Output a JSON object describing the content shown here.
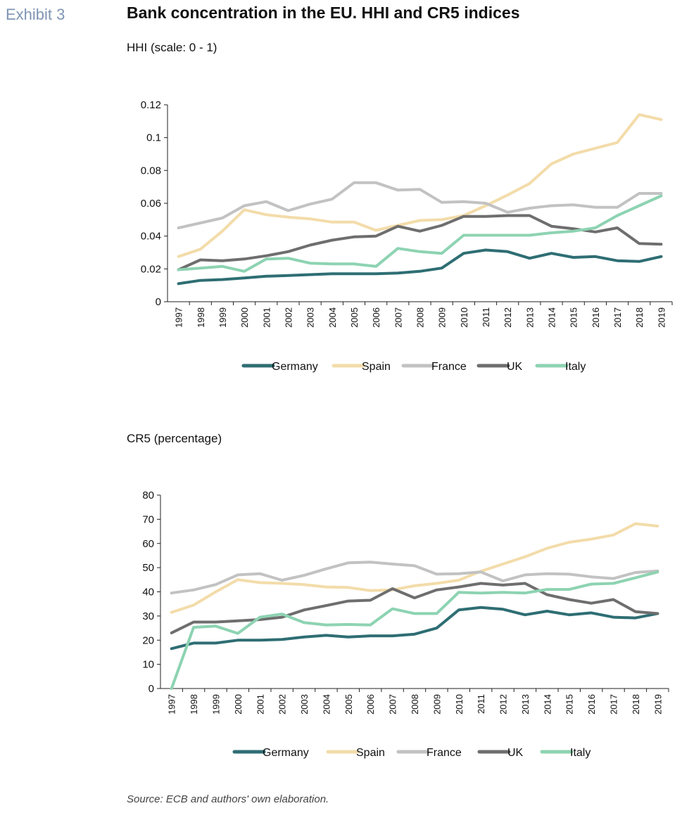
{
  "header": {
    "exhibit": "Exhibit 3",
    "title": "Bank concentration in the EU. HHI and CR5 indices"
  },
  "source": "Source: ECB and authors' own elaboration.",
  "colors": {
    "Germany": "#2e6e73",
    "Spain": "#f3dcaa",
    "France": "#c2c2c2",
    "UK": "#6e6e6e",
    "Italy": "#8dd3b2"
  },
  "chart_data": [
    {
      "type": "line",
      "title": "HHI (scale: 0 - 1)",
      "x": [
        "1997",
        "1998",
        "1999",
        "2000",
        "2001",
        "2002",
        "2003",
        "2004",
        "2005",
        "2006",
        "2007",
        "2008",
        "2009",
        "2010",
        "2011",
        "2012",
        "2013",
        "2014",
        "2015",
        "2016",
        "2017",
        "2018",
        "2019"
      ],
      "y_ticks": [
        "0",
        "0.02",
        "0.04",
        "0.06",
        "0.08",
        "0.1",
        "0.12"
      ],
      "ylim": [
        0,
        0.12
      ],
      "grid": false,
      "legend_position": "bottom",
      "series": [
        {
          "name": "Germany",
          "values": [
            0.011,
            0.013,
            0.0135,
            0.0145,
            0.0155,
            0.016,
            0.0165,
            0.017,
            0.017,
            0.017,
            0.0175,
            0.0185,
            0.0205,
            0.0295,
            0.0315,
            0.0305,
            0.0265,
            0.0295,
            0.027,
            0.0275,
            0.025,
            0.0245,
            0.0275
          ]
        },
        {
          "name": "Spain",
          "values": [
            0.0275,
            0.032,
            0.043,
            0.056,
            0.053,
            0.0515,
            0.0505,
            0.0485,
            0.0485,
            0.0435,
            0.0465,
            0.0495,
            0.05,
            0.0525,
            0.0585,
            0.065,
            0.072,
            0.084,
            0.09,
            0.0935,
            0.097,
            0.114,
            0.111
          ]
        },
        {
          "name": "France",
          "values": [
            0.045,
            0.048,
            0.051,
            0.0585,
            0.061,
            0.0555,
            0.0595,
            0.0625,
            0.0725,
            0.0725,
            0.068,
            0.0685,
            0.0605,
            0.061,
            0.06,
            0.0545,
            0.057,
            0.0585,
            0.059,
            0.0575,
            0.0575,
            0.066,
            0.066
          ]
        },
        {
          "name": "UK",
          "values": [
            0.0195,
            0.0255,
            0.025,
            0.026,
            0.028,
            0.0305,
            0.0345,
            0.0375,
            0.0395,
            0.04,
            0.046,
            0.043,
            0.0465,
            0.052,
            0.052,
            0.0525,
            0.0525,
            0.046,
            0.0445,
            0.0425,
            0.045,
            0.0355,
            0.035
          ]
        },
        {
          "name": "Italy",
          "values": [
            0.0195,
            0.0205,
            0.0215,
            0.0185,
            0.026,
            0.0265,
            0.0235,
            0.023,
            0.023,
            0.0215,
            0.0325,
            0.0305,
            0.0295,
            0.0405,
            0.0405,
            0.0405,
            0.0405,
            0.042,
            0.043,
            0.045,
            0.0525,
            0.0585,
            0.0645
          ]
        }
      ]
    },
    {
      "type": "line",
      "title": "CR5 (percentage)",
      "x": [
        "1997",
        "1998",
        "1999",
        "2000",
        "2001",
        "2002",
        "2003",
        "2004",
        "2005",
        "2006",
        "2007",
        "2008",
        "2009",
        "2010",
        "2011",
        "2012",
        "2013",
        "2014",
        "2015",
        "2016",
        "2017",
        "2018",
        "2019"
      ],
      "y_ticks": [
        "0",
        "10",
        "20",
        "30",
        "40",
        "50",
        "60",
        "70",
        "80"
      ],
      "ylim": [
        0,
        80
      ],
      "grid": false,
      "legend_position": "bottom",
      "series": [
        {
          "name": "Germany",
          "values": [
            16.5,
            18.8,
            18.8,
            20,
            20,
            20.3,
            21.3,
            22,
            21.3,
            21.8,
            21.8,
            22.5,
            25,
            32.5,
            33.5,
            32.8,
            30.5,
            32,
            30.5,
            31.3,
            29.5,
            29.2,
            31
          ]
        },
        {
          "name": "Spain",
          "values": [
            31.5,
            34.5,
            40,
            45,
            43.8,
            43.5,
            43,
            42,
            41.8,
            40.5,
            40.8,
            42.5,
            43.5,
            44.8,
            48.5,
            51.5,
            54.5,
            58,
            60.5,
            61.8,
            63.5,
            68.2,
            67.2
          ]
        },
        {
          "name": "France",
          "values": [
            39.5,
            40.8,
            43,
            47,
            47.5,
            44.8,
            46.8,
            49.5,
            52,
            52.3,
            51.5,
            50.8,
            47.3,
            47.5,
            48.2,
            44.5,
            47,
            47.5,
            47.3,
            46.2,
            45.5,
            48,
            48.6
          ]
        },
        {
          "name": "UK",
          "values": [
            23,
            27.5,
            27.5,
            28,
            28.5,
            29.5,
            32.5,
            34.3,
            36.2,
            36.5,
            41.3,
            37.5,
            40.8,
            42,
            43.5,
            42.8,
            43.5,
            38.8,
            36.8,
            35.3,
            36.8,
            31.8,
            31
          ]
        },
        {
          "name": "Italy",
          "values": [
            0,
            25.3,
            25.8,
            22.8,
            29.5,
            30.8,
            27.3,
            26.3,
            26.5,
            26.3,
            33,
            31,
            31,
            39.8,
            39.5,
            39.8,
            39.5,
            41,
            41,
            43.2,
            43.5,
            45.8,
            48.2
          ]
        }
      ]
    }
  ]
}
